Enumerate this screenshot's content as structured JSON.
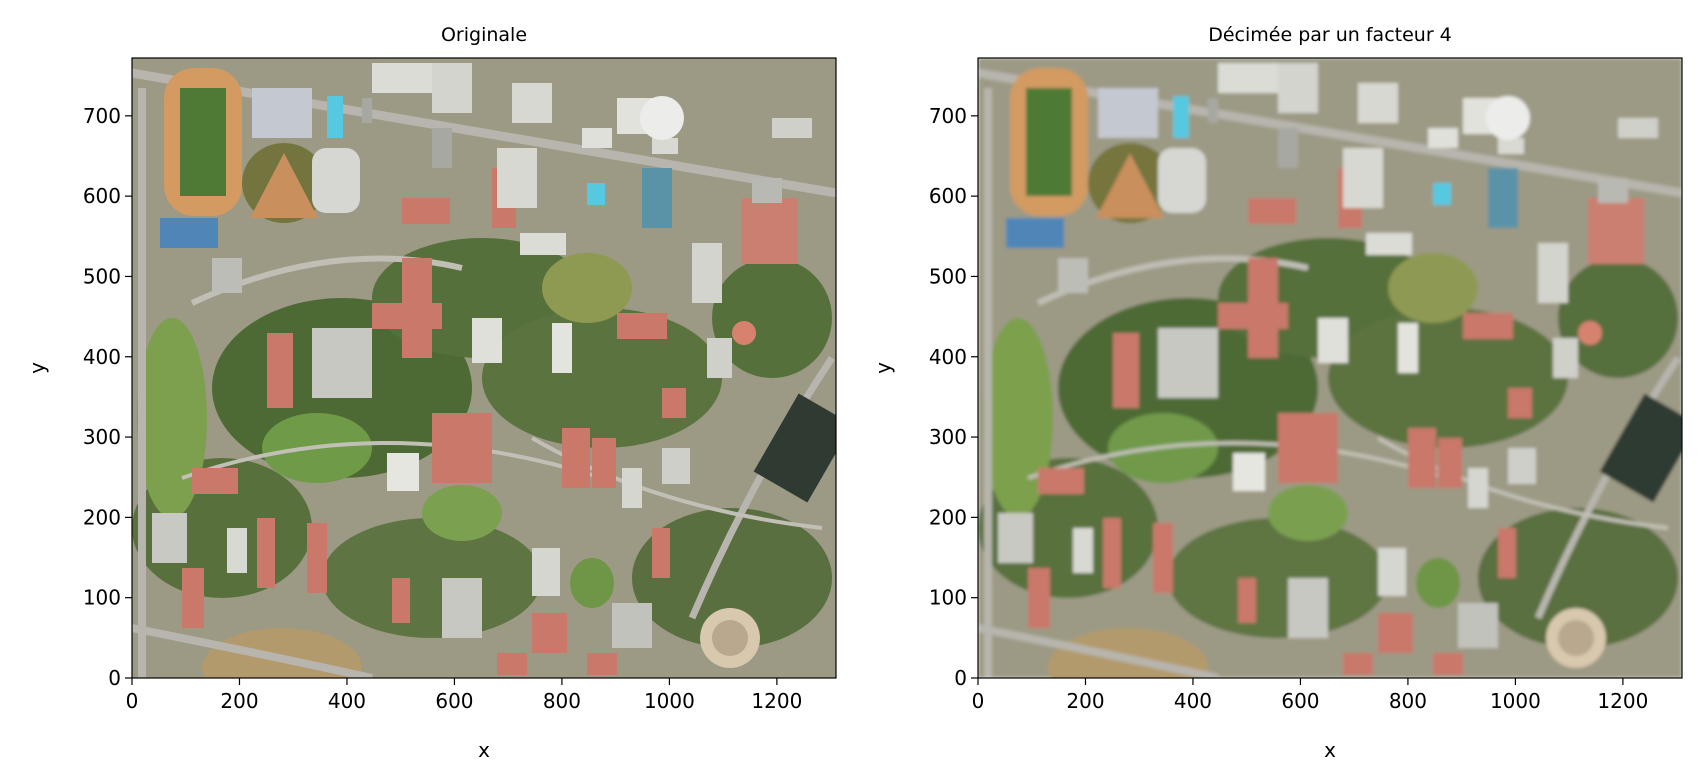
{
  "figure": {
    "panels": [
      {
        "id": "original",
        "title": "Originale",
        "xlabel": "x",
        "ylabel": "y",
        "xlim": [
          0,
          1310
        ],
        "ylim": [
          0,
          772
        ],
        "xticks": [
          0,
          200,
          400,
          600,
          800,
          1000,
          1200
        ],
        "yticks": [
          0,
          100,
          200,
          300,
          400,
          500,
          600,
          700
        ],
        "image_variant": "sharp"
      },
      {
        "id": "decimated",
        "title": "Décimée par un facteur 4",
        "xlabel": "x",
        "ylabel": "y",
        "xlim": [
          0,
          1310
        ],
        "ylim": [
          0,
          772
        ],
        "xticks": [
          0,
          200,
          400,
          600,
          800,
          1000,
          1200
        ],
        "yticks": [
          0,
          100,
          200,
          300,
          400,
          500,
          600,
          700
        ],
        "image_variant": "blurred"
      }
    ],
    "scene": {
      "subject": "aerial photograph of a university campus",
      "palette": {
        "ground": "#9c9a84",
        "vegetation": "#4d6a34",
        "lawn": "#6f9a48",
        "roof_red": "#c9786a",
        "roof_white": "#dcdcd6",
        "roof_gray": "#a8a8a2",
        "track": "#d39a62",
        "pool": "#56c8df",
        "court": "#4f86b8",
        "dark_field": "#2f3a33",
        "road": "#b7b5ad"
      }
    }
  }
}
